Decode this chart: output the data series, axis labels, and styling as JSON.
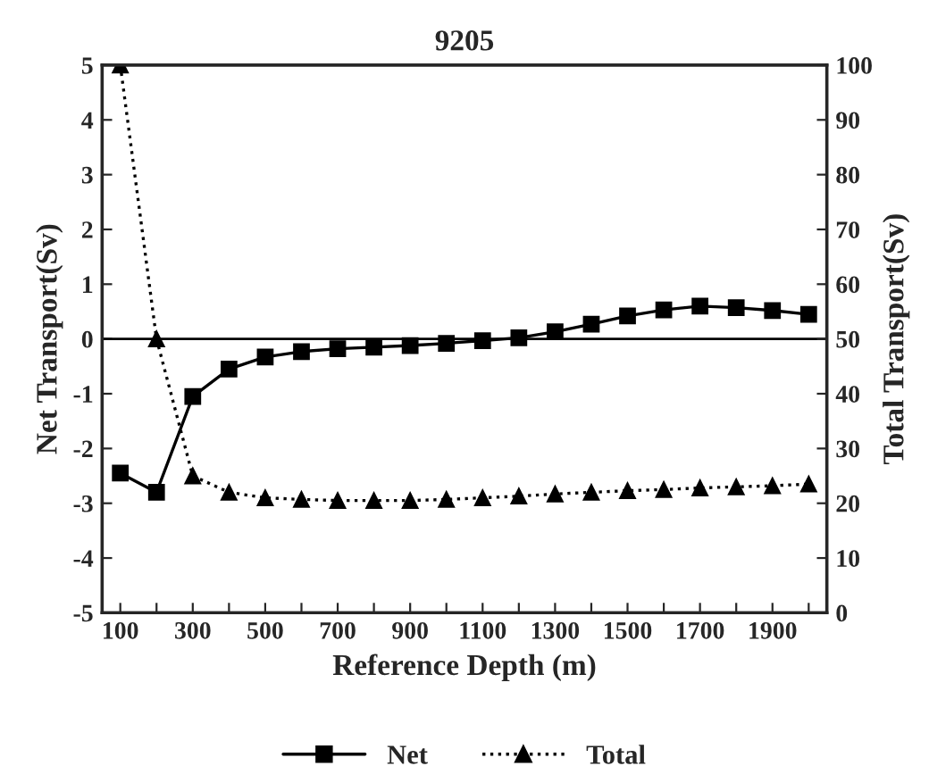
{
  "chart_data": {
    "type": "line",
    "title": "9205",
    "xlabel": "Reference Depth (m)",
    "ylabel": "Net Transport(Sv)",
    "y2label": "Total Transport(Sv)",
    "x": [
      100,
      200,
      300,
      400,
      500,
      600,
      700,
      800,
      900,
      1000,
      1100,
      1200,
      1300,
      1400,
      1500,
      1600,
      1700,
      1800,
      1900,
      2000
    ],
    "series": [
      {
        "name": "Net",
        "color": "#000000",
        "marker": "square",
        "line_style": "solid",
        "values": [
          -2.45,
          -2.8,
          -1.05,
          -0.55,
          -0.33,
          -0.23,
          -0.18,
          -0.15,
          -0.12,
          -0.08,
          -0.03,
          0.02,
          0.13,
          0.27,
          0.42,
          0.53,
          0.6,
          0.57,
          0.52,
          0.45
        ]
      },
      {
        "name": "Total",
        "color": "#000000",
        "marker": "triangle",
        "line_style": "dotted",
        "axis": "y2",
        "values": [
          100,
          50,
          25,
          22,
          21,
          20.7,
          20.5,
          20.5,
          20.5,
          20.7,
          21,
          21.3,
          21.7,
          22,
          22.3,
          22.5,
          22.8,
          23,
          23.2,
          23.5
        ]
      }
    ],
    "xlim": [
      50,
      2050
    ],
    "xticks": [
      100,
      {
        "value": 200,
        "label": null
      },
      300,
      {
        "value": 400,
        "label": null
      },
      500,
      {
        "value": 600,
        "label": null
      },
      700,
      {
        "value": 800,
        "label": null
      },
      900,
      {
        "value": 1000,
        "label": null
      },
      1100,
      {
        "value": 1200,
        "label": null
      },
      1300,
      {
        "value": 1400,
        "label": null
      },
      1500,
      {
        "value": 1600,
        "label": null
      },
      1700,
      {
        "value": 1800,
        "label": null
      },
      1900,
      {
        "value": 2000,
        "label": null
      }
    ],
    "ylim": [
      -5,
      5
    ],
    "yticks": [
      -5,
      -4,
      -3,
      -2,
      -1,
      0,
      1,
      2,
      3,
      4,
      5
    ],
    "y2lim": [
      0,
      100
    ],
    "y2ticks": [
      0,
      10,
      20,
      30,
      40,
      50,
      60,
      70,
      80,
      90,
      100
    ],
    "ref_lines": [
      {
        "axis": "y",
        "value": 0,
        "color": "#000000"
      }
    ],
    "legend": "bottom",
    "grid": false
  }
}
